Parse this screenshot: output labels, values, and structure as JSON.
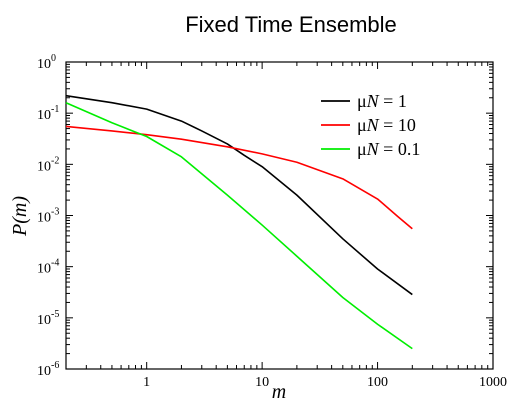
{
  "chart_data": {
    "type": "line",
    "title": "Fixed Time Ensemble",
    "xlabel": "m",
    "ylabel": "P(m)",
    "xscale": "log",
    "yscale": "log",
    "xlim": [
      0.2,
      1000
    ],
    "ylim": [
      1e-06,
      1
    ],
    "grid": false,
    "legend_position": "top-right",
    "x_ticks": [
      {
        "value": 1,
        "label": "1"
      },
      {
        "value": 10,
        "label": "10"
      },
      {
        "value": 100,
        "label": "100"
      },
      {
        "value": 1000,
        "label": "1000"
      }
    ],
    "y_ticks": [
      {
        "value": 1,
        "base": "10",
        "exp": "0"
      },
      {
        "value": 0.1,
        "base": "10",
        "exp": "-1"
      },
      {
        "value": 0.01,
        "base": "10",
        "exp": "-2"
      },
      {
        "value": 0.001,
        "base": "10",
        "exp": "-3"
      },
      {
        "value": 0.0001,
        "base": "10",
        "exp": "-4"
      },
      {
        "value": 1e-05,
        "base": "10",
        "exp": "-5"
      },
      {
        "value": 1e-06,
        "base": "10",
        "exp": "-6"
      }
    ],
    "series": [
      {
        "name": "μN = 1",
        "legend_prefix": "μ",
        "legend_italic": "N",
        "legend_suffix": " = 1",
        "color": "#000000",
        "x": [
          0.2,
          0.5,
          1,
          2,
          3,
          5,
          7,
          10,
          20,
          50,
          100,
          200
        ],
        "y": [
          0.22,
          0.16,
          0.12,
          0.07,
          0.045,
          0.025,
          0.015,
          0.009,
          0.0025,
          0.00035,
          9e-05,
          2.85e-05
        ]
      },
      {
        "name": "μN = 10",
        "legend_prefix": "μ",
        "legend_italic": "N",
        "legend_suffix": " = 10",
        "color": "#ff0000",
        "x": [
          0.2,
          0.5,
          1,
          2,
          5,
          10,
          20,
          50,
          100,
          150,
          200
        ],
        "y": [
          0.055,
          0.045,
          0.038,
          0.031,
          0.022,
          0.016,
          0.011,
          0.0052,
          0.0021,
          0.00095,
          0.00055
        ]
      },
      {
        "name": "μN = 0.1",
        "legend_prefix": "μ",
        "legend_italic": "N",
        "legend_suffix": " = 0.1",
        "color": "#00ee00",
        "x": [
          0.2,
          0.5,
          1,
          2,
          5,
          10,
          20,
          50,
          100,
          200
        ],
        "y": [
          0.16,
          0.065,
          0.035,
          0.014,
          0.0025,
          0.00065,
          0.00016,
          2.5e-05,
          7.5e-06,
          2.5e-06
        ]
      }
    ]
  }
}
